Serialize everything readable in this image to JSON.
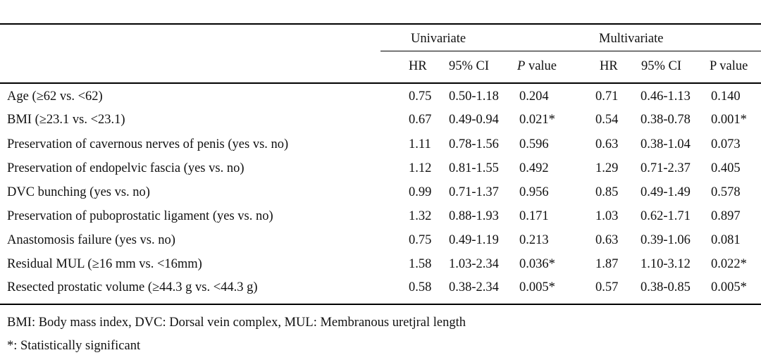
{
  "groups": {
    "univariate": "Univariate",
    "multivariate": "Multivariate"
  },
  "headers": {
    "uni_hr": "HR",
    "uni_ci": "95% CI",
    "uni_p_italic": "P",
    "uni_p_rest": " value",
    "multi_hr": "HR",
    "multi_ci": "95% CI",
    "multi_p": "P value"
  },
  "rows": [
    {
      "label": "Age (≥62 vs. <62)",
      "uni_hr": "0.75",
      "uni_ci": "0.50-1.18",
      "uni_p": "0.204",
      "multi_hr": "0.71",
      "multi_ci": "0.46-1.13",
      "multi_p": "0.140"
    },
    {
      "label": "BMI (≥23.1 vs. <23.1)",
      "uni_hr": "0.67",
      "uni_ci": "0.49-0.94",
      "uni_p": "0.021*",
      "multi_hr": "0.54",
      "multi_ci": "0.38-0.78",
      "multi_p": "0.001*"
    },
    {
      "label": "Preservation of cavernous nerves of penis (yes vs. no)",
      "uni_hr": "1.11",
      "uni_ci": "0.78-1.56",
      "uni_p": "0.596",
      "multi_hr": "0.63",
      "multi_ci": "0.38-1.04",
      "multi_p": "0.073"
    },
    {
      "label": "Preservation of endopelvic fascia (yes vs. no)",
      "uni_hr": "1.12",
      "uni_ci": "0.81-1.55",
      "uni_p": "0.492",
      "multi_hr": "1.29",
      "multi_ci": "0.71-2.37",
      "multi_p": "0.405"
    },
    {
      "label": "DVC bunching (yes vs. no)",
      "uni_hr": "0.99",
      "uni_ci": "0.71-1.37",
      "uni_p": "0.956",
      "multi_hr": "0.85",
      "multi_ci": "0.49-1.49",
      "multi_p": "0.578"
    },
    {
      "label": "Preservation of puboprostatic ligament (yes vs. no)",
      "uni_hr": "1.32",
      "uni_ci": "0.88-1.93",
      "uni_p": "0.171",
      "multi_hr": "1.03",
      "multi_ci": "0.62-1.71",
      "multi_p": "0.897"
    },
    {
      "label": "Anastomosis failure (yes vs. no)",
      "uni_hr": "0.75",
      "uni_ci": "0.49-1.19",
      "uni_p": "0.213",
      "multi_hr": "0.63",
      "multi_ci": "0.39-1.06",
      "multi_p": "0.081"
    },
    {
      "label": "Residual MUL (≥16 mm vs. <16mm)",
      "uni_hr": "1.58",
      "uni_ci": "1.03-2.34",
      "uni_p": "0.036*",
      "multi_hr": "1.87",
      "multi_ci": "1.10-3.12",
      "multi_p": "0.022*"
    },
    {
      "label": "Resected prostatic volume (≥44.3 g vs. <44.3 g)",
      "uni_hr": "0.58",
      "uni_ci": "0.38-2.34",
      "uni_p": "0.005*",
      "multi_hr": "0.57",
      "multi_ci": "0.38-0.85",
      "multi_p": "0.005*"
    }
  ],
  "notes": {
    "abbreviations": "BMI: Body mass index, DVC: Dorsal vein complex, MUL: Membranous uretjral length",
    "significance": "*: Statistically significant"
  }
}
